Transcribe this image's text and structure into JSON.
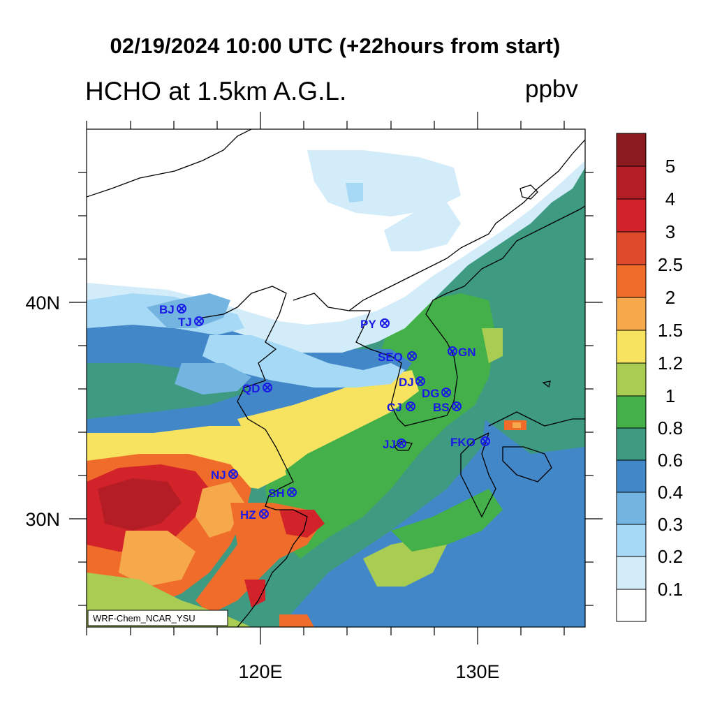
{
  "header": {
    "title": "02/19/2024 10:00 UTC (+22hours from start)",
    "variable": "HCHO at 1.5km A.G.L.",
    "unit": "ppbv"
  },
  "map": {
    "model_label": "WRF-Chem_NCAR_YSU",
    "lon_labels": [
      "120E",
      "130E"
    ],
    "lat_labels": [
      "40N",
      "30N"
    ],
    "cities": [
      {
        "code": "BJ"
      },
      {
        "code": "TJ"
      },
      {
        "code": "PY"
      },
      {
        "code": "SEO"
      },
      {
        "code": "GN"
      },
      {
        "code": "QD"
      },
      {
        "code": "DJ"
      },
      {
        "code": "DG"
      },
      {
        "code": "CJ"
      },
      {
        "code": "BS"
      },
      {
        "code": "JJ"
      },
      {
        "code": "FKO"
      },
      {
        "code": "NJ"
      },
      {
        "code": "SH"
      },
      {
        "code": "HZ"
      }
    ]
  },
  "colorbar": {
    "labels": [
      "5",
      "4",
      "3",
      "2.5",
      "2",
      "1.5",
      "1.2",
      "1",
      "0.8",
      "0.6",
      "0.4",
      "0.3",
      "0.2",
      "0.1"
    ],
    "colors_top_to_bottom": [
      "#8b1a1e",
      "#b41d25",
      "#d2232a",
      "#e04a2c",
      "#f06c2b",
      "#f6a94a",
      "#f7e35f",
      "#a9cd52",
      "#44b04a",
      "#3f9a82",
      "#4287c7",
      "#73b4e0",
      "#a6d9f5",
      "#d3ecf9",
      "#ffffff"
    ]
  }
}
